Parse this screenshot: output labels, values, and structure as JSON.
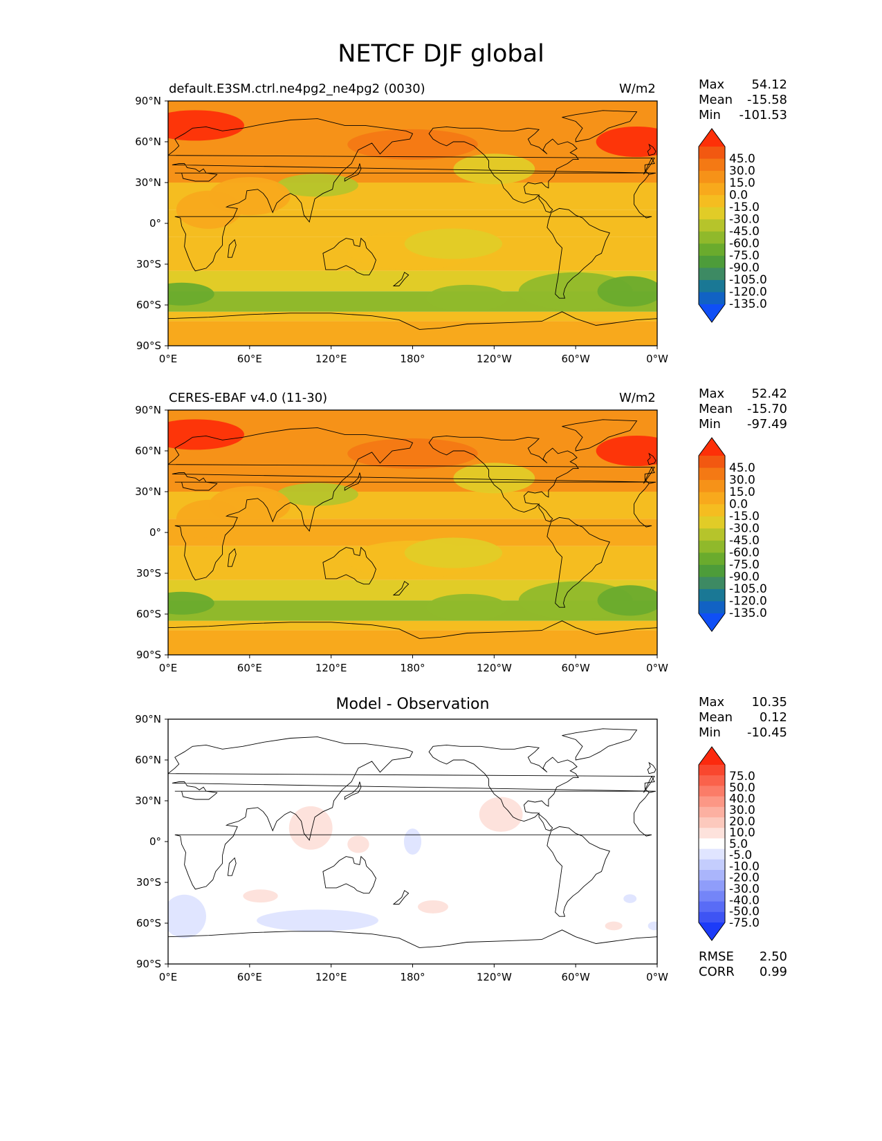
{
  "suptitle": "NETCF DJF global",
  "colors": {
    "diff_pos": [
      "#ffffff",
      "#fde2dc",
      "#fcc9bd",
      "#fcb0a1",
      "#fc9785",
      "#fb7c68",
      "#fa624b",
      "#f9472e",
      "#fc2a0e"
    ],
    "diff_neg": [
      "#ffffff",
      "#e0e5ff",
      "#c4cdfd",
      "#aab5fb",
      "#8f9dfa",
      "#7485f8",
      "#596cf6",
      "#3e54f4",
      "#1c3bf8"
    ],
    "main_scale": [
      "#0f4ff6",
      "#1162c4",
      "#1a7895",
      "#3d8a63",
      "#4d9c3a",
      "#6aab2d",
      "#90b92b",
      "#b6c42b",
      "#e1cc27",
      "#f5bd20",
      "#f8a91c",
      "#f69218",
      "#f47914",
      "#f25811",
      "#fd3008"
    ]
  },
  "panels": [
    {
      "left_title": "default.E3SM.ctrl.ne4pg2_ne4pg2 (0030)",
      "units": "W/m2",
      "center_title": "",
      "stats": [
        [
          "Max",
          "54.12"
        ],
        [
          "Mean",
          "-15.58"
        ],
        [
          "Min",
          "-101.53"
        ]
      ]
    },
    {
      "left_title": "CERES-EBAF v4.0 (11-30)",
      "units": "W/m2",
      "center_title": "",
      "stats": [
        [
          "Max",
          "52.42"
        ],
        [
          "Mean",
          "-15.70"
        ],
        [
          "Min",
          "-97.49"
        ]
      ]
    },
    {
      "left_title": "",
      "units": "",
      "center_title": "Model - Observation",
      "stats": [
        [
          "Max",
          "10.35"
        ],
        [
          "Mean",
          "0.12"
        ],
        [
          "Min",
          "-10.45"
        ]
      ],
      "extra_stats": [
        [
          "RMSE",
          "2.50"
        ],
        [
          "CORR",
          "0.99"
        ]
      ]
    }
  ],
  "chart_data": [
    {
      "type": "heatmap",
      "subtype": "filled-contour map",
      "title": "default.E3SM.ctrl.ne4pg2_ne4pg2 (0030)",
      "units": "W/m2",
      "x_ticks": [
        "0°E",
        "60°E",
        "120°E",
        "180°",
        "120°W",
        "60°W",
        "0°W"
      ],
      "y_ticks": [
        "90°N",
        "60°N",
        "30°N",
        "0°",
        "30°S",
        "60°S",
        "90°S"
      ],
      "xlim": [
        0,
        360
      ],
      "ylim": [
        -90,
        90
      ],
      "colorbar_levels": [
        "45.0",
        "30.0",
        "15.0",
        "0.0",
        "-15.0",
        "-30.0",
        "-45.0",
        "-60.0",
        "-75.0",
        "-90.0",
        "-105.0",
        "-120.0",
        "-135.0"
      ],
      "colorbar_extend": "both",
      "zonal_band_values": [
        {
          "lat": [
            60,
            90
          ],
          "value": 10
        },
        {
          "lat": [
            30,
            60
          ],
          "value": 0
        },
        {
          "lat": [
            10,
            30
          ],
          "value": -22
        },
        {
          "lat": [
            -10,
            10
          ],
          "value": -18
        },
        {
          "lat": [
            -35,
            -10
          ],
          "value": -28
        },
        {
          "lat": [
            -50,
            -35
          ],
          "value": -45
        },
        {
          "lat": [
            -65,
            -50
          ],
          "value": -68
        },
        {
          "lat": [
            -72,
            -65
          ],
          "value": -25
        },
        {
          "lat": [
            -90,
            -72
          ],
          "value": -5
        }
      ]
    },
    {
      "type": "heatmap",
      "subtype": "filled-contour map",
      "title": "CERES-EBAF v4.0 (11-30)",
      "units": "W/m2",
      "x_ticks": [
        "0°E",
        "60°E",
        "120°E",
        "180°",
        "120°W",
        "60°W",
        "0°W"
      ],
      "y_ticks": [
        "90°N",
        "60°N",
        "30°N",
        "0°",
        "30°S",
        "60°S",
        "90°S"
      ],
      "xlim": [
        0,
        360
      ],
      "ylim": [
        -90,
        90
      ],
      "colorbar_levels": [
        "45.0",
        "30.0",
        "15.0",
        "0.0",
        "-15.0",
        "-30.0",
        "-45.0",
        "-60.0",
        "-75.0",
        "-90.0",
        "-105.0",
        "-120.0",
        "-135.0"
      ],
      "colorbar_extend": "both",
      "zonal_band_values": [
        {
          "lat": [
            60,
            90
          ],
          "value": 10
        },
        {
          "lat": [
            30,
            60
          ],
          "value": 0
        },
        {
          "lat": [
            10,
            30
          ],
          "value": -18
        },
        {
          "lat": [
            -10,
            10
          ],
          "value": -10
        },
        {
          "lat": [
            -35,
            -10
          ],
          "value": -25
        },
        {
          "lat": [
            -50,
            -35
          ],
          "value": -45
        },
        {
          "lat": [
            -65,
            -50
          ],
          "value": -68
        },
        {
          "lat": [
            -72,
            -65
          ],
          "value": -25
        },
        {
          "lat": [
            -90,
            -72
          ],
          "value": -5
        }
      ]
    },
    {
      "type": "heatmap",
      "subtype": "filled-contour map",
      "title": "Model - Observation",
      "x_ticks": [
        "0°E",
        "60°E",
        "120°E",
        "180°",
        "120°W",
        "60°W",
        "0°W"
      ],
      "y_ticks": [
        "90°N",
        "60°N",
        "30°N",
        "0°",
        "30°S",
        "60°S",
        "90°S"
      ],
      "xlim": [
        0,
        360
      ],
      "ylim": [
        -90,
        90
      ],
      "colorbar_levels": [
        "75.0",
        "50.0",
        "40.0",
        "30.0",
        "20.0",
        "10.0",
        "5.0",
        "-5.0",
        "-10.0",
        "-20.0",
        "-30.0",
        "-40.0",
        "-50.0",
        "-75.0"
      ],
      "colorbar_extend": "both"
    }
  ]
}
